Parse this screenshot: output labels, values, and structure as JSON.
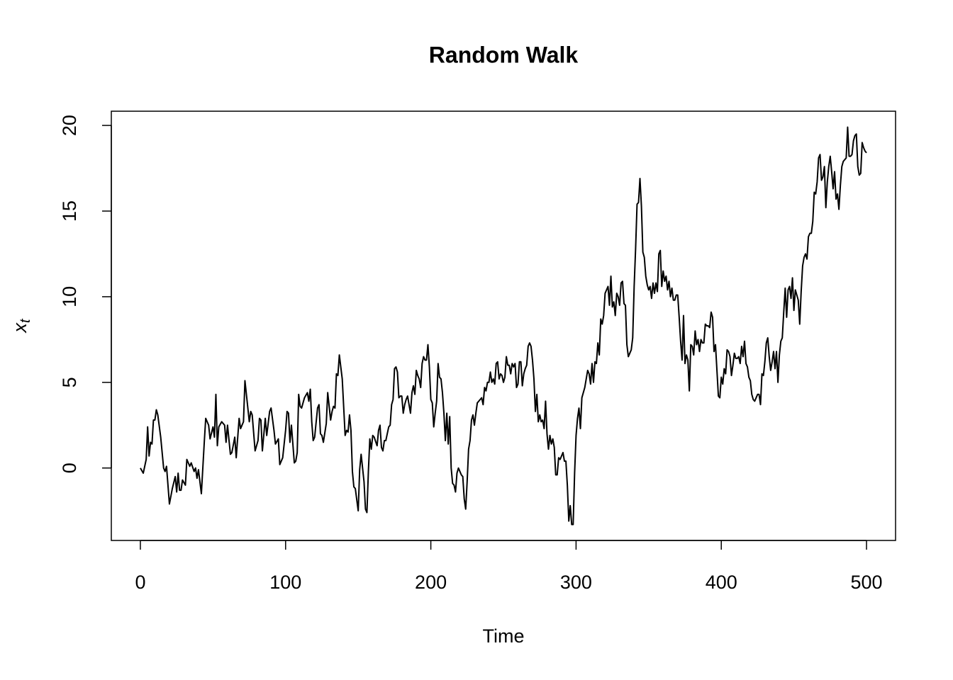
{
  "chart_data": {
    "type": "line",
    "title": "Random Walk",
    "x_label": "Time",
    "y_label": "x",
    "y_label_subscript": "t",
    "color": "#000000",
    "xlim": [
      -20,
      520
    ],
    "ylim": [
      -4.23,
      20.83
    ],
    "xticks": [
      0,
      100,
      200,
      300,
      400,
      500
    ],
    "yticks": [
      0,
      5,
      10,
      15,
      20
    ],
    "x": [
      0,
      2,
      4,
      5,
      6,
      7,
      8,
      9,
      10,
      11,
      12,
      14,
      16,
      17,
      18,
      20,
      22,
      24,
      25,
      26,
      27,
      28,
      29,
      31,
      32,
      34,
      35,
      37,
      38,
      39,
      40,
      42,
      44,
      45,
      47,
      48,
      50,
      51,
      52,
      53,
      54,
      56,
      58,
      59,
      60,
      62,
      63,
      65,
      66,
      68,
      69,
      71,
      72,
      74,
      75,
      76,
      77,
      79,
      81,
      82,
      83,
      84,
      86,
      87,
      89,
      90,
      92,
      93,
      95,
      96,
      98,
      100,
      101,
      102,
      103,
      104,
      106,
      107,
      108,
      109,
      110,
      111,
      113,
      115,
      116,
      117,
      118,
      119,
      120,
      122,
      123,
      124,
      125,
      126,
      128,
      129,
      131,
      132,
      133,
      134,
      135,
      136,
      137,
      139,
      141,
      142,
      143,
      144,
      145,
      146,
      147,
      148,
      150,
      151,
      152,
      154,
      155,
      156,
      157,
      158,
      159,
      160,
      161,
      163,
      164,
      165,
      166,
      167,
      168,
      169,
      171,
      172,
      173,
      174,
      175,
      176,
      177,
      178,
      179,
      180,
      181,
      182,
      183,
      184,
      185,
      186,
      187,
      188,
      189,
      190,
      191,
      192,
      193,
      194,
      195,
      196,
      197,
      198,
      199,
      200,
      201,
      202,
      203,
      204,
      205,
      206,
      207,
      208,
      209,
      210,
      211,
      212,
      213,
      214,
      215,
      216,
      217,
      218,
      219,
      220,
      221,
      222,
      223,
      224,
      225,
      226,
      227,
      228,
      229,
      230,
      231,
      232,
      233,
      234,
      235,
      236,
      237,
      238,
      239,
      240,
      241,
      242,
      243,
      244,
      245,
      246,
      247,
      248,
      249,
      250,
      251,
      252,
      253,
      254,
      255,
      256,
      257,
      258,
      259,
      260,
      261,
      262,
      263,
      264,
      265,
      266,
      267,
      268,
      269,
      270,
      271,
      272,
      273,
      274,
      275,
      276,
      277,
      278,
      279,
      280,
      281,
      282,
      283,
      284,
      285,
      286,
      287,
      288,
      289,
      290,
      291,
      292,
      293,
      294,
      295,
      296,
      297,
      298,
      299,
      300,
      301,
      302,
      303,
      304,
      305,
      306,
      307,
      308,
      309,
      310,
      311,
      312,
      313,
      314,
      315,
      316,
      317,
      318,
      319,
      320,
      321,
      322,
      323,
      324,
      325,
      326,
      327,
      328,
      329,
      330,
      331,
      332,
      333,
      334,
      335,
      336,
      337,
      338,
      339,
      340,
      341,
      342,
      343,
      344,
      345,
      346,
      347,
      348,
      349,
      350,
      351,
      352,
      353,
      354,
      355,
      356,
      357,
      358,
      359,
      360,
      361,
      362,
      363,
      364,
      365,
      366,
      367,
      368,
      369,
      370,
      371,
      372,
      373,
      374,
      375,
      376,
      377,
      378,
      379,
      380,
      381,
      382,
      383,
      384,
      385,
      386,
      387,
      388,
      389,
      390,
      391,
      392,
      393,
      394,
      395,
      396,
      397,
      398,
      399,
      400,
      401,
      402,
      403,
      404,
      405,
      406,
      407,
      408,
      409,
      410,
      411,
      412,
      413,
      414,
      415,
      416,
      417,
      418,
      419,
      420,
      421,
      422,
      423,
      424,
      425,
      426,
      427,
      428,
      429,
      430,
      431,
      432,
      433,
      434,
      435,
      436,
      437,
      438,
      439,
      440,
      441,
      442,
      443,
      444,
      445,
      446,
      447,
      448,
      449,
      450,
      451,
      452,
      453,
      454,
      455,
      456,
      457,
      458,
      459,
      460,
      461,
      462,
      463,
      464,
      465,
      466,
      467,
      468,
      469,
      470,
      471,
      472,
      473,
      474,
      475,
      476,
      477,
      478,
      479,
      480,
      481,
      482,
      483,
      484,
      485,
      486,
      487,
      488,
      489,
      490,
      491,
      492,
      493,
      494,
      495,
      496,
      497,
      498,
      499,
      500
    ],
    "values": [
      0,
      -0.3,
      0.5,
      2.4,
      0.7,
      1.5,
      1.4,
      2.8,
      2.8,
      3.4,
      3.1,
      1.8,
      0.0,
      -0.2,
      0.1,
      -2.1,
      -1.2,
      -0.5,
      -1.4,
      -0.3,
      -1.3,
      -1.3,
      -0.7,
      -1.0,
      0.5,
      0.1,
      0.3,
      -0.2,
      0.0,
      -0.6,
      -0.1,
      -1.5,
      1.5,
      2.9,
      2.5,
      1.7,
      2.4,
      1.8,
      4.3,
      1.3,
      2.4,
      2.7,
      2.5,
      1.5,
      2.5,
      0.8,
      0.9,
      1.8,
      0.6,
      2.9,
      2.3,
      2.7,
      5.1,
      3.5,
      2.7,
      3.3,
      3.1,
      1.0,
      1.6,
      2.9,
      2.8,
      1.0,
      2.9,
      1.9,
      3.3,
      3.5,
      2.2,
      1.4,
      1.7,
      0.2,
      0.6,
      2.2,
      3.3,
      3.2,
      1.5,
      2.5,
      0.3,
      0.4,
      0.9,
      4.3,
      3.6,
      3.5,
      4.1,
      4.4,
      3.9,
      4.6,
      2.7,
      1.6,
      1.8,
      3.5,
      3.7,
      2.0,
      1.9,
      1.5,
      2.6,
      4.4,
      2.8,
      3.3,
      3.6,
      3.5,
      5.5,
      5.4,
      6.6,
      5.2,
      1.9,
      2.2,
      2.1,
      3.1,
      2.2,
      -0.2,
      -1.1,
      -1.2,
      -2.5,
      -0.1,
      0.8,
      -0.8,
      -2.4,
      -2.6,
      -0.2,
      1.7,
      1.1,
      1.9,
      1.8,
      1.3,
      2.2,
      2.5,
      1.2,
      1.0,
      1.6,
      1.6,
      2.4,
      2.5,
      3.7,
      4.0,
      5.8,
      5.9,
      5.6,
      4.1,
      4.2,
      4.2,
      3.2,
      3.7,
      4.0,
      4.2,
      3.7,
      3.2,
      4.4,
      4.8,
      4.3,
      5.7,
      5.4,
      5.2,
      4.7,
      6.1,
      6.5,
      6.3,
      6.3,
      7.2,
      5.9,
      4.0,
      3.8,
      2.4,
      3.2,
      3.9,
      6.1,
      5.3,
      5.2,
      4.4,
      3.2,
      1.6,
      3.2,
      1.4,
      3.0,
      0.0,
      -0.9,
      -1.0,
      -1.4,
      -0.3,
      0.0,
      -0.2,
      -0.4,
      -0.5,
      -1.8,
      -2.4,
      -0.8,
      1.1,
      1.6,
      2.8,
      3.1,
      2.5,
      3.2,
      3.8,
      3.9,
      4.0,
      4.1,
      3.7,
      4.7,
      4.5,
      5.0,
      5.0,
      5.6,
      5.0,
      5.2,
      4.9,
      6.1,
      6.2,
      5.2,
      5.5,
      5.4,
      5.0,
      5.3,
      6.5,
      6.0,
      6.0,
      5.5,
      6.1,
      5.9,
      6.1,
      4.7,
      4.9,
      6.2,
      6.2,
      4.8,
      5.5,
      5.8,
      6.0,
      7.1,
      7.3,
      7.1,
      6.3,
      5.2,
      3.3,
      4.3,
      2.7,
      3.1,
      2.7,
      2.8,
      2.3,
      3.9,
      2.0,
      1.1,
      1.9,
      1.4,
      1.7,
      1.2,
      -0.4,
      -0.4,
      0.6,
      0.5,
      0.7,
      0.9,
      0.4,
      0.4,
      -1.0,
      -3.1,
      -2.2,
      -3.3,
      -3.3,
      -0.3,
      1.9,
      2.9,
      3.5,
      2.3,
      4.1,
      4.4,
      4.7,
      5.2,
      5.7,
      5.5,
      4.9,
      6.1,
      5.0,
      6.2,
      6.1,
      7.3,
      6.6,
      8.7,
      8.4,
      8.9,
      10.2,
      10.4,
      10.6,
      9.5,
      11.2,
      9.4,
      9.7,
      8.9,
      10.2,
      10.0,
      9.5,
      10.8,
      10.9,
      9.6,
      9.5,
      7.2,
      6.5,
      6.7,
      6.9,
      7.6,
      10.6,
      12.8,
      15.4,
      15.5,
      16.9,
      15.3,
      12.6,
      12.3,
      11.2,
      10.7,
      10.4,
      10.6,
      9.9,
      10.8,
      10.2,
      10.8,
      10.3,
      12.5,
      12.7,
      10.6,
      11.5,
      10.9,
      11.2,
      10.4,
      10.9,
      10.0,
      10.5,
      9.8,
      9.8,
      10.1,
      10.1,
      8.8,
      7.4,
      6.3,
      8.9,
      6.1,
      6.6,
      6.3,
      4.5,
      7.2,
      7.1,
      6.6,
      8.0,
      7.2,
      7.5,
      6.8,
      7.5,
      7.3,
      7.3,
      8.4,
      8.3,
      8.3,
      8.2,
      9.1,
      8.8,
      6.8,
      7.2,
      5.7,
      4.2,
      4.1,
      5.3,
      4.9,
      5.8,
      5.5,
      6.9,
      6.8,
      6.5,
      5.4,
      6.0,
      6.7,
      6.4,
      6.4,
      6.5,
      6.1,
      7.1,
      6.5,
      7.4,
      6.1,
      5.9,
      5.3,
      5.1,
      4.3,
      4.0,
      3.9,
      4.1,
      4.3,
      4.3,
      3.7,
      5.5,
      5.4,
      6.2,
      7.3,
      7.6,
      6.5,
      5.7,
      6.2,
      6.8,
      5.8,
      6.8,
      5.0,
      6.6,
      7.4,
      7.6,
      9.1,
      10.5,
      8.8,
      10.4,
      10.6,
      9.9,
      11.1,
      9.2,
      10.4,
      10.1,
      9.8,
      8.4,
      10.3,
      11.8,
      12.3,
      12.5,
      12.2,
      13.5,
      13.7,
      13.7,
      14.4,
      16.1,
      16.0,
      16.7,
      18.1,
      18.3,
      16.8,
      17.0,
      17.6,
      15.2,
      16.7,
      17.6,
      18.2,
      17.3,
      16.3,
      17.3,
      15.7,
      16.0,
      15.1,
      16.5,
      17.6,
      17.9,
      18.0,
      18.1,
      19.9,
      18.2,
      18.2,
      18.3,
      19.1,
      19.4,
      19.5,
      17.6,
      17.1,
      17.2,
      19.0,
      18.7,
      18.5,
      18.4
    ]
  }
}
